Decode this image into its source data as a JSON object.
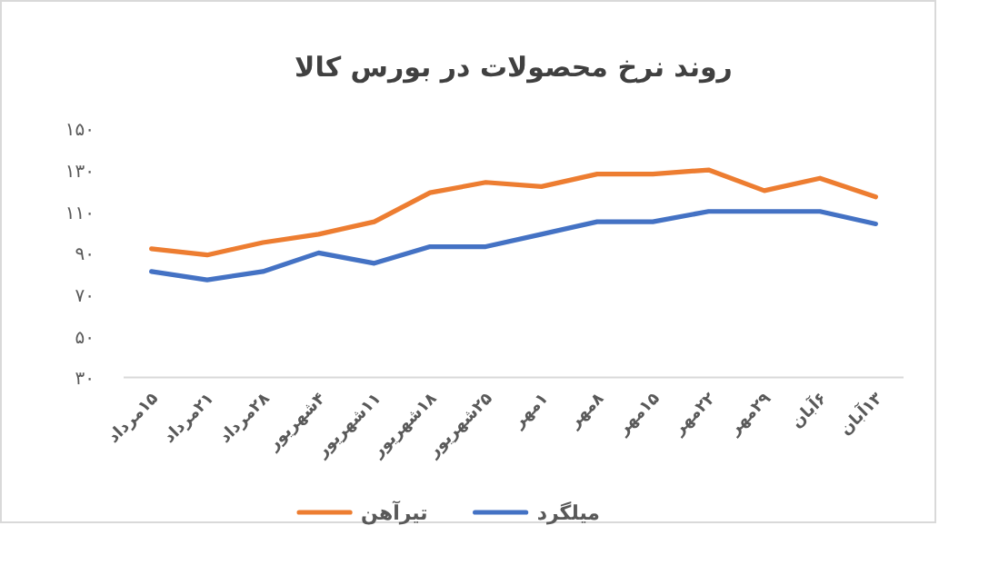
{
  "chart_data": {
    "type": "line",
    "title": "روند نرخ محصولات در بورس کالا",
    "categories": [
      "۱۵مرداد",
      "۲۱مرداد",
      "۲۸مرداد",
      "۴شهریور",
      "۱۱شهریور",
      "۱۸شهریور",
      "۲۵شهریور",
      "۱مهر",
      "۸مهر",
      "۱۵مهر",
      "۲۲مهر",
      "۲۹مهر",
      "۶آبان",
      "۱۳آبان"
    ],
    "series": [
      {
        "name": "میلگرد",
        "color": "#4472c4",
        "values": [
          81,
          77,
          81,
          90,
          85,
          93,
          93,
          99,
          105,
          105,
          110,
          110,
          110,
          104
        ]
      },
      {
        "name": "تیرآهن",
        "color": "#ed7d31",
        "values": [
          92,
          89,
          95,
          99,
          105,
          119,
          124,
          122,
          128,
          128,
          130,
          120,
          126,
          117
        ]
      }
    ],
    "ylim": [
      30,
      150
    ],
    "yticks": [
      {
        "value": 30,
        "label": "۳۰"
      },
      {
        "value": 50,
        "label": "۵۰"
      },
      {
        "value": 70,
        "label": "۷۰"
      },
      {
        "value": 90,
        "label": "۹۰"
      },
      {
        "value": 110,
        "label": "۱۱۰"
      },
      {
        "value": 130,
        "label": "۱۳۰"
      },
      {
        "value": 150,
        "label": "۱۵۰"
      }
    ],
    "grid": false,
    "legend": "bottom",
    "marker": "none",
    "line_style": "solid"
  }
}
